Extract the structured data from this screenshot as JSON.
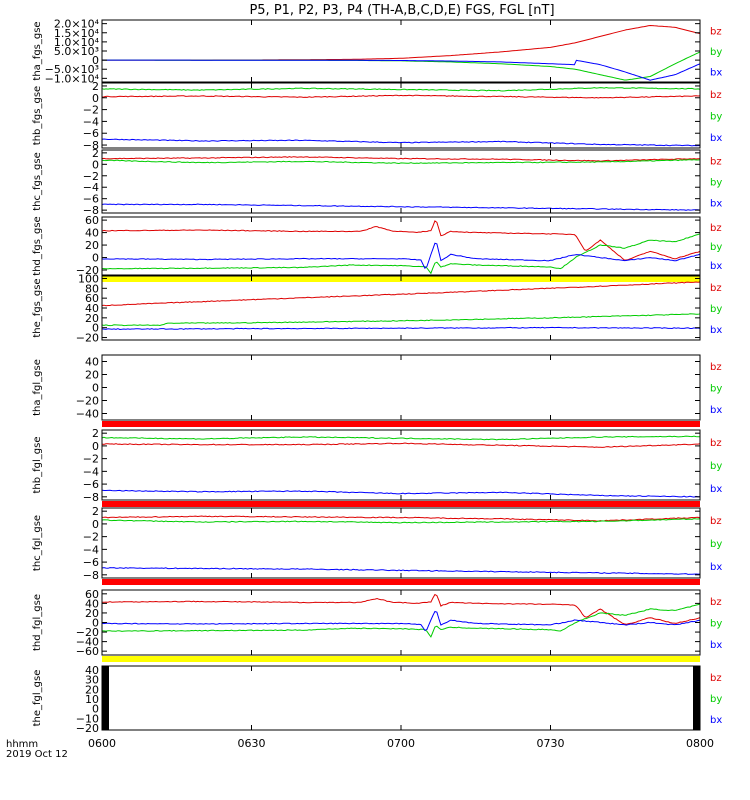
{
  "title": "P5, P1, P2, P3, P4 (TH-A,B,C,D,E) FGS, FGL [nT]",
  "xaxis": {
    "ticks": [
      "0600",
      "0630",
      "0700",
      "0730",
      "0800"
    ],
    "tick_minutes": [
      0,
      30,
      60,
      90,
      120
    ],
    "range_minutes": [
      0,
      120
    ],
    "units_label": "hhmm",
    "date_label": "2019 Oct 12"
  },
  "colors": {
    "bx": "#0000ff",
    "by": "#00cc00",
    "bz": "#dd0000",
    "yellow_bar": "#ffff00",
    "red_bar": "#ff0000"
  },
  "chart_data": [
    {
      "id": "tha_fgs",
      "type": "line",
      "ylabel": "tha_fgs_gse",
      "ylim": [
        -12000,
        22000
      ],
      "ticks": [
        -10000,
        -5000,
        0,
        5000,
        10000,
        15000,
        20000
      ],
      "tick_labels": [
        "−1.0×10⁴",
        "−5.0×10³",
        "0",
        "5.0×10³",
        "1.0×10⁴",
        "1.5×10⁴",
        "2.0×10⁴"
      ],
      "legend": [
        "bz",
        "by",
        "bx"
      ],
      "series": [
        {
          "name": "bz",
          "x": [
            0,
            30,
            50,
            60,
            70,
            80,
            90,
            95,
            100,
            105,
            110,
            115,
            120
          ],
          "y": [
            0,
            50,
            400,
            1000,
            2500,
            4500,
            7000,
            9500,
            13000,
            16500,
            19000,
            18000,
            14500
          ]
        },
        {
          "name": "by",
          "x": [
            0,
            30,
            50,
            60,
            70,
            80,
            90,
            95,
            100,
            105,
            110,
            115,
            120
          ],
          "y": [
            0,
            -50,
            -150,
            -400,
            -1000,
            -2000,
            -3500,
            -5000,
            -8000,
            -11000,
            -9000,
            -2000,
            4500
          ]
        },
        {
          "name": "bx",
          "x": [
            0,
            30,
            50,
            60,
            70,
            80,
            90,
            94.9,
            95,
            100,
            105,
            110,
            115,
            120
          ],
          "y": [
            0,
            -30,
            -100,
            -200,
            -500,
            -1000,
            -2000,
            -2500,
            0,
            -2500,
            -6500,
            -11000,
            -8000,
            -2000
          ]
        }
      ],
      "bar": null
    },
    {
      "id": "thb_fgs",
      "type": "line",
      "ylabel": "thb_fgs_gse",
      "ylim": [
        -8.5,
        2.5
      ],
      "ticks": [
        -8,
        -6,
        -4,
        -2,
        0,
        2
      ],
      "tick_labels": [
        "−8",
        "−6",
        "−4",
        "−2",
        "0",
        "2"
      ],
      "legend": [
        "bz",
        "by",
        "bx"
      ],
      "series": [
        {
          "name": "bz",
          "x": [
            0,
            20,
            40,
            60,
            80,
            100,
            120
          ],
          "y": [
            0.2,
            0.3,
            0.1,
            0.4,
            0.2,
            0.0,
            0.3
          ]
        },
        {
          "name": "by",
          "x": [
            0,
            20,
            40,
            60,
            80,
            100,
            120
          ],
          "y": [
            1.5,
            1.3,
            1.6,
            1.4,
            1.2,
            1.7,
            1.5
          ]
        },
        {
          "name": "bx",
          "x": [
            0,
            20,
            40,
            60,
            80,
            100,
            120
          ],
          "y": [
            -7.0,
            -7.3,
            -7.2,
            -7.6,
            -7.4,
            -7.9,
            -8.1
          ]
        }
      ],
      "bar": null
    },
    {
      "id": "thc_fgs",
      "type": "line",
      "ylabel": "thc_fgs_gse",
      "ylim": [
        -8.5,
        2.5
      ],
      "ticks": [
        -8,
        -6,
        -4,
        -2,
        0,
        2
      ],
      "tick_labels": [
        "−8",
        "−6",
        "−4",
        "−2",
        "0",
        "2"
      ],
      "legend": [
        "bz",
        "by",
        "bx"
      ],
      "series": [
        {
          "name": "bz",
          "x": [
            0,
            20,
            40,
            60,
            80,
            100,
            120
          ],
          "y": [
            1.0,
            1.1,
            1.3,
            1.0,
            0.9,
            0.6,
            1.0
          ]
        },
        {
          "name": "by",
          "x": [
            0,
            20,
            40,
            60,
            80,
            100,
            120
          ],
          "y": [
            0.7,
            0.3,
            0.5,
            0.2,
            0.3,
            0.4,
            0.8
          ]
        },
        {
          "name": "bx",
          "x": [
            0,
            20,
            40,
            60,
            80,
            100,
            120
          ],
          "y": [
            -7.0,
            -7.0,
            -7.2,
            -7.4,
            -7.6,
            -7.8,
            -8.0
          ]
        }
      ],
      "bar": null
    },
    {
      "id": "thd_fgs",
      "type": "line",
      "ylabel": "thd_fgs_gse",
      "ylim": [
        -28,
        65
      ],
      "ticks": [
        -20,
        0,
        20,
        40,
        60
      ],
      "tick_labels": [
        "−20",
        "0",
        "20",
        "40",
        "60"
      ],
      "legend": [
        "bz",
        "by",
        "bx"
      ],
      "series": [
        {
          "name": "bz",
          "x": [
            0,
            20,
            40,
            52,
            55,
            58,
            63,
            66,
            67,
            68,
            70,
            75,
            90,
            95,
            97,
            100,
            105,
            110,
            115,
            120
          ],
          "y": [
            43,
            44,
            42,
            42,
            50,
            43,
            40,
            43,
            62,
            35,
            42,
            40,
            38,
            37,
            10,
            28,
            -5,
            10,
            -2,
            10
          ]
        },
        {
          "name": "by",
          "x": [
            0,
            20,
            40,
            50,
            60,
            65,
            66,
            67,
            68,
            70,
            75,
            90,
            92,
            95,
            100,
            105,
            110,
            115,
            120
          ],
          "y": [
            -18,
            -17,
            -16,
            -12,
            -13,
            -15,
            -25,
            -5,
            -15,
            -10,
            -12,
            -15,
            -18,
            0,
            20,
            15,
            28,
            25,
            38
          ]
        },
        {
          "name": "bx",
          "x": [
            0,
            20,
            40,
            60,
            64,
            65,
            66,
            67,
            68,
            70,
            75,
            90,
            95,
            100,
            105,
            110,
            115,
            120
          ],
          "y": [
            -2,
            -3,
            -2,
            -2,
            -4,
            -20,
            5,
            28,
            -5,
            5,
            -2,
            -5,
            5,
            0,
            -5,
            0,
            -5,
            5
          ]
        }
      ],
      "bar": {
        "color": "yellow"
      }
    },
    {
      "id": "the_fgs",
      "type": "line",
      "ylabel": "the_fgs_gse",
      "ylim": [
        -25,
        105
      ],
      "ticks": [
        -20,
        0,
        20,
        40,
        60,
        80,
        100
      ],
      "tick_labels": [
        "−20",
        "0",
        "20",
        "40",
        "60",
        "80",
        "100"
      ],
      "legend": [
        "bz",
        "by",
        "bx"
      ],
      "series": [
        {
          "name": "bz",
          "x": [
            0,
            30,
            60,
            90,
            120
          ],
          "y": [
            45,
            57,
            68,
            80,
            93
          ]
        },
        {
          "name": "by",
          "x": [
            0,
            12,
            13,
            30,
            60,
            90,
            120
          ],
          "y": [
            5,
            5,
            9,
            10,
            14,
            20,
            28
          ]
        },
        {
          "name": "bx",
          "x": [
            0,
            30,
            60,
            90,
            120
          ],
          "y": [
            -3,
            -2,
            -1,
            0,
            -1
          ]
        }
      ],
      "bar": null
    },
    {
      "id": "tha_fgl",
      "type": "line",
      "ylabel": "tha_fgl_gse",
      "ylim": [
        -50,
        50
      ],
      "ticks": [
        -40,
        -20,
        0,
        20,
        40
      ],
      "tick_labels": [
        "−40",
        "−20",
        "0",
        "20",
        "40"
      ],
      "legend": [
        "bz",
        "by",
        "bx"
      ],
      "series": [],
      "bar": {
        "color": "red"
      }
    },
    {
      "id": "thb_fgl",
      "type": "line",
      "ylabel": "thb_fgl_gse",
      "ylim": [
        -8.5,
        2.5
      ],
      "ticks": [
        -8,
        -6,
        -4,
        -2,
        0,
        2
      ],
      "tick_labels": [
        "−8",
        "−6",
        "−4",
        "−2",
        "0",
        "2"
      ],
      "legend": [
        "bz",
        "by",
        "bx"
      ],
      "series": [
        {
          "name": "bz",
          "x": [
            0,
            20,
            40,
            60,
            80,
            100,
            120
          ],
          "y": [
            0.3,
            0.2,
            0.2,
            0.4,
            0.1,
            -0.2,
            0.3
          ]
        },
        {
          "name": "by",
          "x": [
            0,
            20,
            40,
            60,
            80,
            100,
            120
          ],
          "y": [
            1.3,
            1.1,
            1.4,
            1.2,
            1.0,
            1.4,
            1.5
          ]
        },
        {
          "name": "bx",
          "x": [
            0,
            20,
            40,
            60,
            80,
            100,
            120
          ],
          "y": [
            -7.0,
            -7.2,
            -7.1,
            -7.5,
            -7.3,
            -7.8,
            -8.0
          ]
        }
      ],
      "bar": {
        "color": "red"
      }
    },
    {
      "id": "thc_fgl",
      "type": "line",
      "ylabel": "thc_fgl_gse",
      "ylim": [
        -8.5,
        2.5
      ],
      "ticks": [
        -8,
        -6,
        -4,
        -2,
        0,
        2
      ],
      "tick_labels": [
        "−8",
        "−6",
        "−4",
        "−2",
        "0",
        "2"
      ],
      "legend": [
        "bz",
        "by",
        "bx"
      ],
      "series": [
        {
          "name": "bz",
          "x": [
            0,
            20,
            40,
            60,
            80,
            100,
            120
          ],
          "y": [
            1.0,
            1.2,
            1.1,
            1.0,
            0.8,
            0.5,
            1.0
          ]
        },
        {
          "name": "by",
          "x": [
            0,
            20,
            40,
            60,
            80,
            100,
            120
          ],
          "y": [
            0.6,
            0.3,
            0.4,
            0.2,
            0.3,
            0.4,
            0.8
          ]
        },
        {
          "name": "bx",
          "x": [
            0,
            20,
            40,
            60,
            80,
            100,
            120
          ],
          "y": [
            -6.9,
            -7.0,
            -7.1,
            -7.3,
            -7.5,
            -7.7,
            -7.9
          ]
        }
      ],
      "bar": {
        "color": "red"
      }
    },
    {
      "id": "thd_fgl",
      "type": "line",
      "ylabel": "thd_fgl_gse",
      "ylim": [
        -68,
        68
      ],
      "ticks": [
        -60,
        -40,
        -20,
        0,
        20,
        40,
        60
      ],
      "tick_labels": [
        "−60",
        "−40",
        "−20",
        "0",
        "20",
        "40",
        "60"
      ],
      "legend": [
        "bz",
        "by",
        "bx"
      ],
      "series": [
        {
          "name": "bz",
          "x": [
            0,
            20,
            40,
            52,
            55,
            58,
            63,
            66,
            67,
            68,
            70,
            75,
            90,
            95,
            97,
            100,
            105,
            110,
            115,
            120
          ],
          "y": [
            43,
            44,
            42,
            42,
            50,
            43,
            40,
            43,
            62,
            35,
            42,
            40,
            38,
            37,
            10,
            28,
            -5,
            10,
            -2,
            10
          ]
        },
        {
          "name": "by",
          "x": [
            0,
            20,
            40,
            50,
            60,
            65,
            66,
            67,
            68,
            70,
            75,
            90,
            92,
            95,
            100,
            105,
            110,
            115,
            120
          ],
          "y": [
            -18,
            -17,
            -16,
            -12,
            -13,
            -15,
            -30,
            -5,
            -15,
            -10,
            -12,
            -15,
            -18,
            0,
            20,
            15,
            28,
            25,
            38
          ]
        },
        {
          "name": "bx",
          "x": [
            0,
            20,
            40,
            60,
            64,
            65,
            66,
            67,
            68,
            70,
            75,
            90,
            95,
            100,
            105,
            110,
            115,
            120
          ],
          "y": [
            -2,
            -3,
            -2,
            -2,
            -4,
            -20,
            5,
            28,
            -5,
            5,
            -2,
            -5,
            5,
            0,
            -5,
            0,
            -5,
            5
          ]
        }
      ],
      "bar": {
        "color": "yellow"
      }
    },
    {
      "id": "the_fgl",
      "type": "line",
      "ylabel": "the_fgl_gse",
      "ylim": [
        -22,
        44
      ],
      "ticks": [
        -20,
        -10,
        0,
        10,
        20,
        30,
        40
      ],
      "tick_labels": [
        "−20",
        "−10",
        "0",
        "10",
        "20",
        "30",
        "40"
      ],
      "legend": [
        "bz",
        "by",
        "bx"
      ],
      "series": [],
      "bar": null
    }
  ]
}
